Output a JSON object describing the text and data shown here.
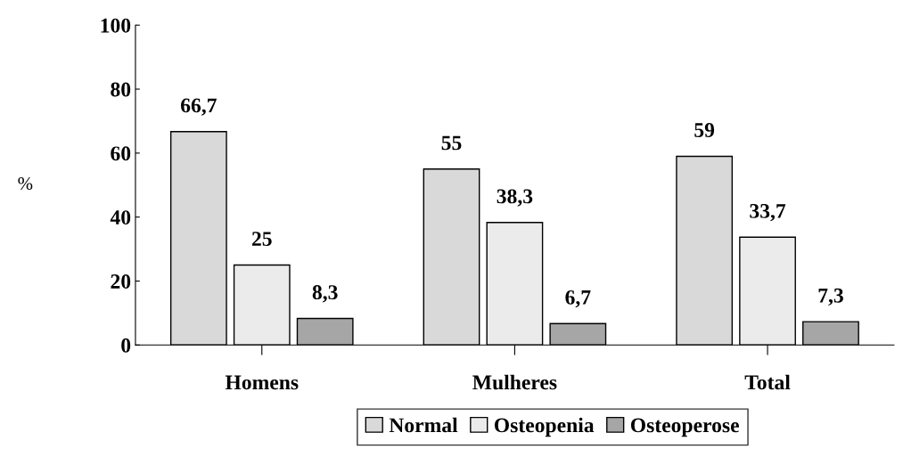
{
  "chart_data": {
    "type": "bar",
    "ylabel": "%",
    "categories": [
      "Homens",
      "Mulheres",
      "Total"
    ],
    "series": [
      {
        "name": "Normal",
        "color": "#d9d9d9",
        "values": [
          66.7,
          55,
          59
        ],
        "value_labels": [
          "66,7",
          "55",
          "59"
        ]
      },
      {
        "name": "Osteopenia",
        "color": "#ebebeb",
        "values": [
          25,
          38.3,
          33.7
        ],
        "value_labels": [
          "25",
          "38,3",
          "33,7"
        ]
      },
      {
        "name": "Osteoperose",
        "color": "#a6a6a6",
        "values": [
          8.3,
          6.7,
          7.3
        ],
        "value_labels": [
          "8,3",
          "6,7",
          "7,3"
        ]
      }
    ],
    "ylim": [
      0,
      100
    ],
    "yticks": [
      0,
      20,
      40,
      60,
      80,
      100
    ],
    "legend": "bottom",
    "grid": false
  }
}
